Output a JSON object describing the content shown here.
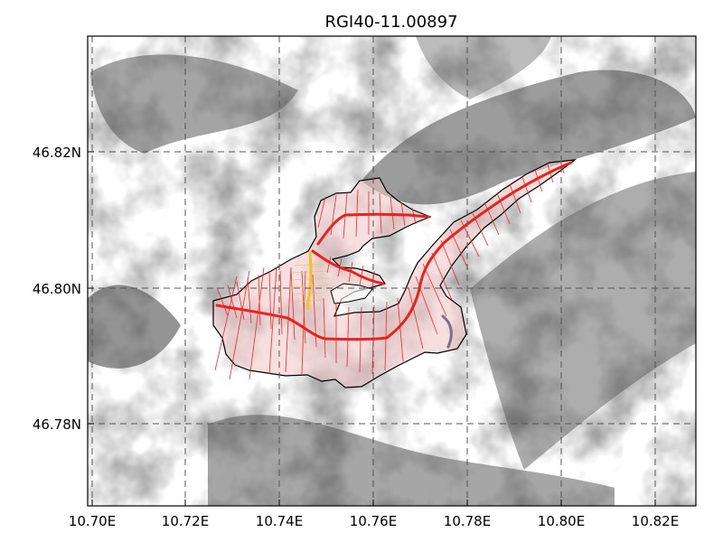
{
  "title": "RGI40-11.00897",
  "x_ticks": [
    "10.70E",
    "10.72E",
    "10.74E",
    "10.76E",
    "10.78E",
    "10.80E",
    "10.82E"
  ],
  "y_ticks": [
    "46.82N",
    "46.80N",
    "46.78N"
  ],
  "colors": {
    "outline": "#000000",
    "centerline": "#e8231e",
    "cross_section": "#e8231e",
    "tributary": "#f0c419",
    "tributary_faint": "#e6c36a",
    "small_flowline": "#7a6f8e",
    "glacier_fill": "#f2c4c4"
  },
  "layers": [
    "hillshade-background",
    "glacier-outline",
    "centerlines",
    "cross-sections",
    "tributary-flowline"
  ]
}
